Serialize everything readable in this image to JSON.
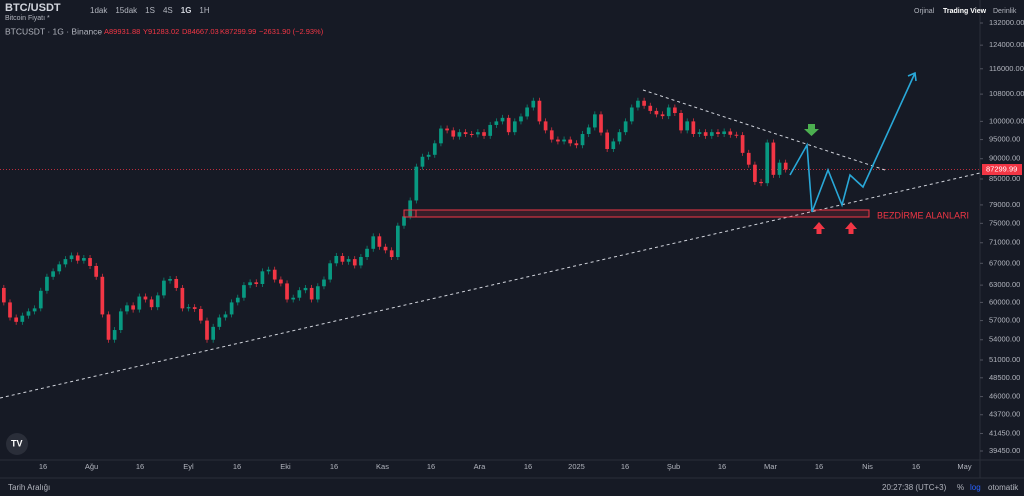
{
  "header": {
    "symbol": "BTC/USDT",
    "subtitle": "Bitcoin Fiyatı *",
    "intervals": [
      "1dak",
      "15dak",
      "1S",
      "4S",
      "1G",
      "1H"
    ],
    "active_interval": "1G",
    "views": [
      "Orjinal",
      "Trading View",
      "Derinlik"
    ],
    "active_view": "Trading View"
  },
  "legend": {
    "title": "BTCUSDT · 1G · Binance",
    "open": "A89931.88",
    "high": "Y91283.02",
    "low": "D84667.03",
    "close": "K87299.99",
    "change": "−2631.90 (−2.93%)"
  },
  "annotation": "BEZDİRME ALANLARI",
  "price_axis": {
    "log": true,
    "range": [
      39450,
      132000
    ],
    "current": {
      "value": 87299.99,
      "label": "87299.99"
    },
    "ticks": [
      {
        "value": 132000,
        "label": "132000.00"
      },
      {
        "value": 124000,
        "label": "124000.00"
      },
      {
        "value": 116000,
        "label": "116000.00"
      },
      {
        "value": 108000,
        "label": "108000.00"
      },
      {
        "value": 100000,
        "label": "100000.00"
      },
      {
        "value": 95000,
        "label": "95000.00"
      },
      {
        "value": 90000,
        "label": "90000.00"
      },
      {
        "value": 85000,
        "label": "85000.00"
      },
      {
        "value": 79000,
        "label": "79000.00"
      },
      {
        "value": 75000,
        "label": "75000.00"
      },
      {
        "value": 71000,
        "label": "71000.00"
      },
      {
        "value": 67000,
        "label": "67000.00"
      },
      {
        "value": 63000,
        "label": "63000.00"
      },
      {
        "value": 60000,
        "label": "60000.00"
      },
      {
        "value": 57000,
        "label": "57000.00"
      },
      {
        "value": 54000,
        "label": "54000.00"
      },
      {
        "value": 51000,
        "label": "51000.00"
      },
      {
        "value": 48500,
        "label": "48500.00"
      },
      {
        "value": 46000,
        "label": "46000.00"
      },
      {
        "value": 43700,
        "label": "43700.00"
      },
      {
        "value": 41450,
        "label": "41450.00"
      },
      {
        "value": 39450,
        "label": "39450.00"
      }
    ]
  },
  "time_axis": [
    "16",
    "Ağu",
    "16",
    "Eyl",
    "16",
    "Eki",
    "16",
    "Kas",
    "16",
    "Ara",
    "16",
    "2025",
    "16",
    "Şub",
    "16",
    "Mar",
    "16",
    "Nis",
    "16",
    "May"
  ],
  "candles": {
    "open": 62500,
    "closes": [
      60000,
      57500,
      56800,
      57800,
      58500,
      59000,
      62000,
      64500,
      65500,
      66800,
      67800,
      68500,
      67500,
      68000,
      66500,
      64500,
      58000,
      54000,
      55500,
      58500,
      59500,
      58800,
      61000,
      60500,
      59200,
      61200,
      63800,
      64100,
      62500,
      59000,
      59200,
      58900,
      57000,
      54000,
      56000,
      57500,
      58000,
      60000,
      60800,
      63000,
      63500,
      63200,
      65500,
      65800,
      64000,
      63300,
      60500,
      60800,
      62100,
      62500,
      60500,
      62800,
      64000,
      67000,
      68400,
      67300,
      67800,
      66600,
      68200,
      69800,
      72300,
      70200,
      69500,
      68200,
      74500,
      76500,
      80000,
      88000,
      90500,
      91000,
      94000,
      98000,
      97500,
      95800,
      97000,
      96500,
      96400,
      97000,
      96000,
      99000,
      100000,
      101000,
      97000,
      100000,
      101400,
      104000,
      106000,
      100000,
      97500,
      95000,
      94500,
      95000,
      94000,
      93500,
      96500,
      98300,
      102000,
      96900,
      92500,
      94500,
      97000,
      100000,
      104000,
      106000,
      104500,
      103000,
      102000,
      101500,
      104000,
      102400,
      97500,
      100000,
      96500,
      97000,
      96000,
      97000,
      96500,
      97200,
      96300,
      96200,
      91500,
      88500,
      84300,
      84000,
      94200,
      86000,
      89000,
      87300
    ]
  },
  "footer": {
    "range": "Tarih Aralığı",
    "clock": "20:27:38 (UTC+3)",
    "percent": "%",
    "log": "log",
    "auto": "otomatik"
  }
}
